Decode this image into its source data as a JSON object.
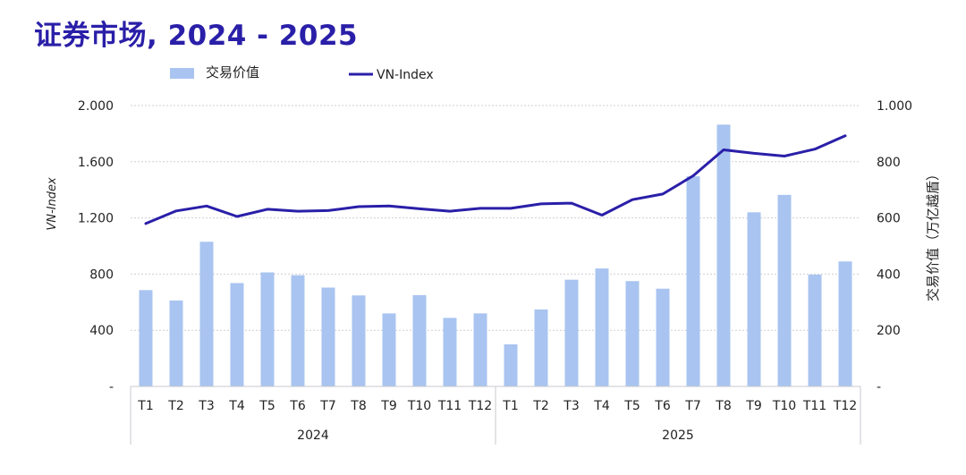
{
  "chart_data": {
    "type": "bar",
    "title": "证券市场, 2024 - 2025",
    "colors": {
      "bar": "#a9c4f0",
      "line": "#2a1fa8",
      "grid": "#cfcfd6",
      "title": "#2a1fa8"
    },
    "legend": {
      "bar_label": "交易价值",
      "line_label": "VN-Index",
      "position": "top-left"
    },
    "ylabel_left": "VN-Index",
    "ylabel_right": "交易价值（万亿越盾）",
    "left_axis": {
      "ylim": [
        0,
        2000
      ],
      "ticks": [
        "-",
        "400",
        "800",
        "1.200",
        "1.600",
        "2.000"
      ]
    },
    "right_axis": {
      "ylim": [
        0,
        1000
      ],
      "ticks": [
        "-",
        "200",
        "400",
        "600",
        "800",
        "1.000"
      ]
    },
    "categories": [
      "T1",
      "T2",
      "T3",
      "T4",
      "T5",
      "T6",
      "T7",
      "T8",
      "T9",
      "T10",
      "T11",
      "T12",
      "T1",
      "T2",
      "T3",
      "T4",
      "T5",
      "T6",
      "T7",
      "T8",
      "T9",
      "T10",
      "T11",
      "T12"
    ],
    "year_groups": [
      {
        "label": "2024",
        "count": 12
      },
      {
        "label": "2025",
        "count": 12
      }
    ],
    "series": [
      {
        "name": "交易价值",
        "type": "bar",
        "axis": "right",
        "values": [
          343,
          306,
          515,
          368,
          406,
          396,
          352,
          324,
          260,
          325,
          244,
          260,
          150,
          274,
          380,
          420,
          375,
          348,
          748,
          932,
          620,
          682,
          398,
          445
        ]
      },
      {
        "name": "VN-Index",
        "type": "line",
        "axis": "left",
        "values": [
          1160,
          1250,
          1285,
          1210,
          1262,
          1248,
          1252,
          1280,
          1285,
          1265,
          1248,
          1268,
          1268,
          1300,
          1305,
          1220,
          1330,
          1370,
          1500,
          1685,
          1660,
          1640,
          1690,
          1785
        ]
      }
    ]
  }
}
